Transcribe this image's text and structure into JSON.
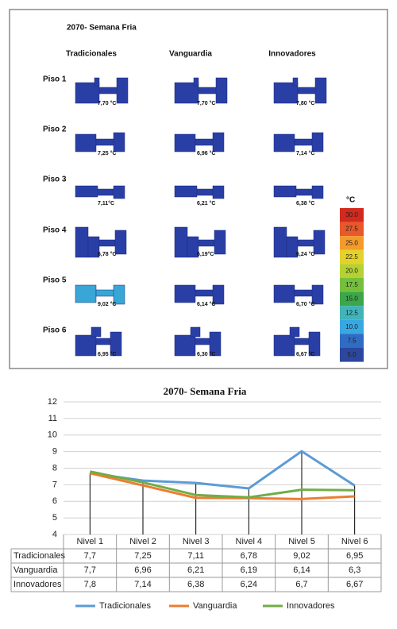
{
  "figure": {
    "title": "2070- Semana Fria",
    "columns": [
      "Tradicionales",
      "Vanguardia",
      "Innovadores"
    ],
    "rows": [
      {
        "label": "Piso 1",
        "temps": [
          "7,70 °C",
          "7,70 °C",
          "7,80 °C"
        ]
      },
      {
        "label": "Piso 2",
        "temps": [
          "7,25 °C",
          "6,96 °C",
          "7,14 °C"
        ]
      },
      {
        "label": "Piso 3",
        "temps": [
          "7,11°C",
          "6,21 °C",
          "6,38 °C"
        ]
      },
      {
        "label": "Piso 4",
        "temps": [
          "6,78 °C",
          "6,19°C",
          "6,24 °C"
        ]
      },
      {
        "label": "Piso 5",
        "temps": [
          "9,02 °C",
          "6,14 °C",
          "6,70 °C"
        ]
      },
      {
        "label": "Piso 6",
        "temps": [
          "6,95 °C",
          "6,30 °C",
          "6,67 °C"
        ]
      }
    ],
    "scale": {
      "unit": "°C",
      "labels": [
        "30.0",
        "27.5",
        "25.0",
        "22.5",
        "20.0",
        "17.5",
        "15.0",
        "12.5",
        "10.0",
        "7.5",
        "5.0"
      ]
    }
  },
  "chart_data": {
    "type": "line",
    "title": "2070- Semana Fria",
    "categories": [
      "Nivel 1",
      "Nivel 2",
      "Nivel 3",
      "Nivel 4",
      "Nivel 5",
      "Nivel 6"
    ],
    "series": [
      {
        "name": "Tradicionales",
        "color": "#5b9bd5",
        "values": [
          7.7,
          7.25,
          7.11,
          6.78,
          9.02,
          6.95
        ],
        "value_labels": [
          "7,7",
          "7,25",
          "7,11",
          "6,78",
          "9,02",
          "6,95"
        ]
      },
      {
        "name": "Vanguardia",
        "color": "#ed7d31",
        "values": [
          7.7,
          6.96,
          6.21,
          6.19,
          6.14,
          6.3
        ],
        "value_labels": [
          "7,7",
          "6,96",
          "6,21",
          "6,19",
          "6,14",
          "6,3"
        ]
      },
      {
        "name": "Innovadores",
        "color": "#70ad47",
        "values": [
          7.8,
          7.14,
          6.38,
          6.24,
          6.7,
          6.67
        ],
        "value_labels": [
          "7,8",
          "7,14",
          "6,38",
          "6,24",
          "6,7",
          "6,67"
        ]
      }
    ],
    "ylim": [
      4,
      12
    ],
    "yticks": [
      4,
      5,
      6,
      7,
      8,
      9,
      10,
      11,
      12
    ],
    "grid": true
  }
}
